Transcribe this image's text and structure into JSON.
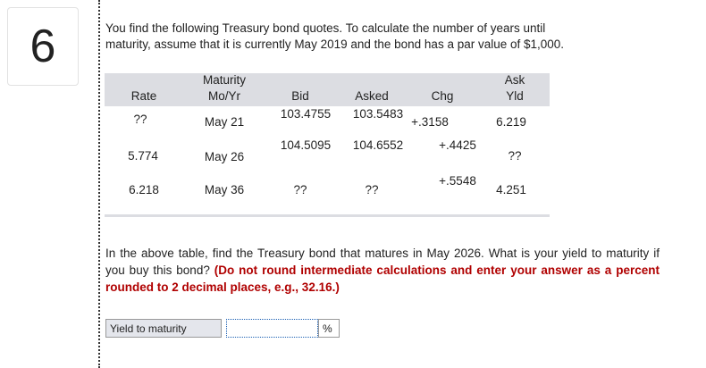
{
  "question": {
    "number": "6",
    "intro_lines": [
      "You find the following Treasury bond quotes. To calculate the number of years until",
      "maturity, assume that it is currently May 2019 and the bond has a par value of $1,000."
    ],
    "task": "In the above table, find the Treasury bond that matures in May 2026. What is your yield to maturity if you buy this bond?",
    "instruction": "(Do not round intermediate calculations and enter your answer as a percent rounded to 2 decimal places, e.g., 32.16.)"
  },
  "table": {
    "headers": [
      [
        "Rate"
      ],
      [
        "Maturity",
        "Mo/Yr"
      ],
      [
        "Bid"
      ],
      [
        "Asked"
      ],
      [
        "Chg"
      ],
      [
        "Ask",
        "Yld"
      ]
    ],
    "rows": [
      [
        "??",
        "May 21",
        "103.4755",
        "103.5483",
        "+.3158",
        "6.219"
      ],
      [
        "5.774",
        "May 26",
        "104.5095",
        "104.6552",
        "+.4425",
        "??"
      ],
      [
        "6.218",
        "May 36",
        "??",
        "??",
        "+.5548",
        "4.251"
      ]
    ]
  },
  "answer": {
    "label": "Yield to maturity",
    "unit": "%"
  }
}
